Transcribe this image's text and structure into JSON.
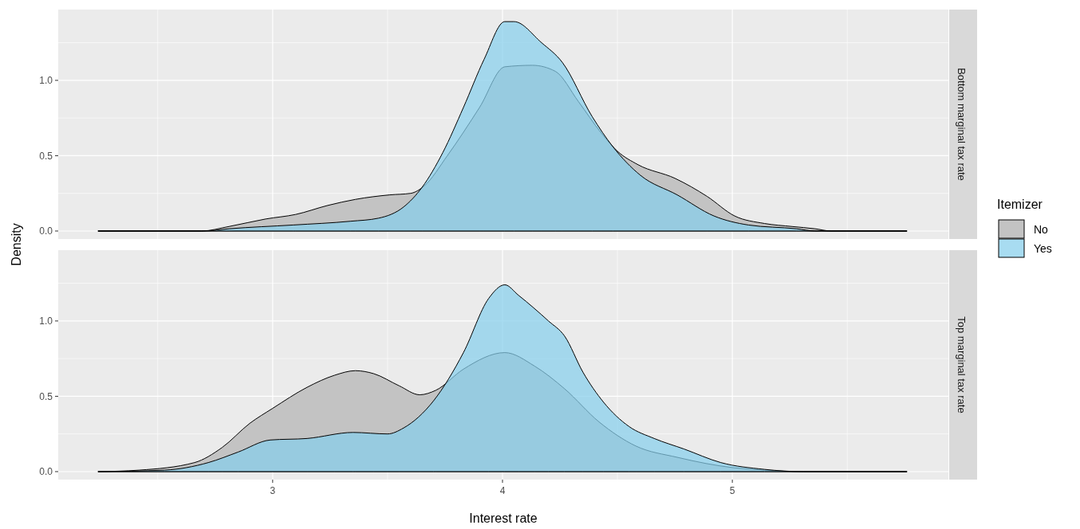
{
  "chart_data": [
    {
      "type": "area",
      "annotations": [
        "Bottom marginal tax rate"
      ],
      "ylabel": "Density",
      "legend_title": "Itemizer",
      "legend": "right",
      "grid": true,
      "tick_labels": "y",
      "xlim": [
        2.067,
        5.94
      ],
      "ylim": [
        -0.053,
        1.47
      ],
      "xticks": [
        {
          "value": 2.5,
          "label": null
        },
        {
          "value": 3,
          "label": null
        },
        {
          "value": 3.5,
          "label": null
        },
        {
          "value": 4,
          "label": null
        },
        {
          "value": 4.5,
          "label": null
        },
        {
          "value": 5,
          "label": null
        },
        {
          "value": 5.5,
          "label": null
        }
      ],
      "yticks": [
        {
          "value": 0,
          "label": "0.0"
        },
        {
          "value": 0.25,
          "label": null
        },
        {
          "value": 0.5,
          "label": "0.5"
        },
        {
          "value": 0.75,
          "label": null
        },
        {
          "value": 1,
          "label": "1.0"
        },
        {
          "value": 1.25,
          "label": null
        }
      ],
      "series": [
        {
          "name": "No",
          "color": "#c3c3c3",
          "x": [
            2.24,
            2.69,
            2.81,
            2.97,
            3.1,
            3.24,
            3.36,
            3.51,
            3.6,
            3.66,
            3.76,
            3.9,
            4.01,
            4.13,
            4.23,
            4.33,
            4.43,
            4.5,
            4.59,
            4.75,
            4.89,
            5.01,
            5.14,
            5.26,
            5.36,
            5.43,
            5.76
          ],
          "values": [
            0,
            0,
            0.03,
            0.08,
            0.11,
            0.17,
            0.21,
            0.24,
            0.25,
            0.3,
            0.5,
            0.82,
            1.09,
            1.1,
            1.06,
            0.86,
            0.65,
            0.53,
            0.44,
            0.35,
            0.23,
            0.1,
            0.05,
            0.03,
            0.015,
            0,
            0
          ]
        },
        {
          "name": "Yes",
          "color": "#87ceeb",
          "x": [
            2.24,
            2.7,
            2.81,
            3.09,
            3.34,
            3.46,
            3.57,
            3.65,
            3.74,
            3.83,
            3.92,
            4.01,
            4.05,
            4.17,
            4.26,
            4.39,
            4.48,
            4.6,
            4.76,
            4.92,
            5.07,
            5.28,
            5.36,
            5.76
          ],
          "values": [
            0,
            0,
            0.015,
            0.04,
            0.065,
            0.085,
            0.16,
            0.29,
            0.52,
            0.82,
            1.14,
            1.39,
            1.39,
            1.25,
            1.12,
            0.76,
            0.56,
            0.37,
            0.24,
            0.1,
            0.04,
            0.015,
            0,
            0
          ]
        }
      ]
    },
    {
      "type": "area",
      "annotations": [
        "Top marginal tax rate"
      ],
      "xlabel": "Interest rate",
      "grid": true,
      "xlim": [
        2.067,
        5.94
      ],
      "ylim": [
        -0.053,
        1.47
      ],
      "xticks": [
        {
          "value": 2.5,
          "label": null
        },
        {
          "value": 3,
          "label": "3"
        },
        {
          "value": 3.5,
          "label": null
        },
        {
          "value": 4,
          "label": "4"
        },
        {
          "value": 4.5,
          "label": null
        },
        {
          "value": 5,
          "label": "5"
        },
        {
          "value": 5.5,
          "label": null
        }
      ],
      "yticks": [
        {
          "value": 0,
          "label": "0.0"
        },
        {
          "value": 0.25,
          "label": null
        },
        {
          "value": 0.5,
          "label": "0.5"
        },
        {
          "value": 0.75,
          "label": null
        },
        {
          "value": 1,
          "label": "1.0"
        },
        {
          "value": 1.25,
          "label": null
        }
      ],
      "series": [
        {
          "color": "#c3c3c3",
          "x": [
            2.24,
            2.42,
            2.66,
            2.78,
            2.9,
            3.0,
            3.15,
            3.27,
            3.36,
            3.44,
            3.55,
            3.64,
            3.71,
            3.83,
            4.01,
            4.14,
            4.27,
            4.42,
            4.58,
            4.76,
            5.01,
            5.14,
            5.31,
            5.76
          ],
          "values": [
            0,
            0.01,
            0.06,
            0.16,
            0.32,
            0.42,
            0.56,
            0.64,
            0.67,
            0.65,
            0.57,
            0.51,
            0.54,
            0.68,
            0.79,
            0.7,
            0.55,
            0.33,
            0.17,
            0.095,
            0.025,
            0.01,
            0,
            0
          ]
        },
        {
          "color": "#87ceeb",
          "x": [
            2.24,
            2.53,
            2.72,
            2.85,
            2.99,
            3.15,
            3.35,
            3.5,
            3.57,
            3.7,
            3.83,
            3.94,
            4.01,
            4.07,
            4.2,
            4.27,
            4.35,
            4.44,
            4.55,
            4.66,
            4.79,
            4.95,
            5.14,
            5.31,
            5.76
          ],
          "values": [
            0,
            0.01,
            0.06,
            0.13,
            0.21,
            0.22,
            0.26,
            0.25,
            0.29,
            0.47,
            0.79,
            1.15,
            1.24,
            1.17,
            1.0,
            0.9,
            0.66,
            0.46,
            0.3,
            0.22,
            0.15,
            0.06,
            0.015,
            0,
            0
          ]
        }
      ]
    }
  ]
}
